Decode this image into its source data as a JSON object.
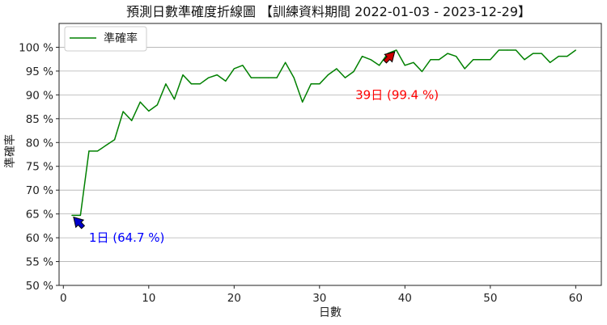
{
  "chart_data": {
    "type": "line",
    "title": "預測日數準確度折線圖 【訓練資料期間 2022-01-03 - 2023-12-29】",
    "xlabel": "日數",
    "ylabel": "準確率",
    "xlim": [
      -0.5,
      63
    ],
    "ylim": [
      50,
      105
    ],
    "x_ticks": [
      0,
      10,
      20,
      30,
      40,
      50,
      60
    ],
    "y_ticks": [
      {
        "value": 50,
        "label": "50 %"
      },
      {
        "value": 55,
        "label": "55 %"
      },
      {
        "value": 60,
        "label": "60 %"
      },
      {
        "value": 65,
        "label": "65 %"
      },
      {
        "value": 70,
        "label": "70 %"
      },
      {
        "value": 75,
        "label": "75 %"
      },
      {
        "value": 80,
        "label": "80 %"
      },
      {
        "value": 85,
        "label": "85 %"
      },
      {
        "value": 90,
        "label": "90 %"
      },
      {
        "value": 95,
        "label": "95 %"
      },
      {
        "value": 100,
        "label": "100 %"
      }
    ],
    "grid": "horizontal",
    "legend_position": "top-left",
    "series": [
      {
        "name": "準確率",
        "color": "#008000",
        "x": [
          1,
          2,
          3,
          4,
          5,
          6,
          7,
          8,
          9,
          10,
          11,
          12,
          13,
          14,
          15,
          16,
          17,
          18,
          19,
          20,
          21,
          22,
          23,
          24,
          25,
          26,
          27,
          28,
          29,
          30,
          31,
          32,
          33,
          34,
          35,
          36,
          37,
          38,
          39,
          40,
          41,
          42,
          43,
          44,
          45,
          46,
          47,
          48,
          49,
          50,
          51,
          52,
          53,
          54,
          55,
          56,
          57,
          58,
          59,
          60
        ],
        "y": [
          64.7,
          64.7,
          78.2,
          78.2,
          79.4,
          80.6,
          86.5,
          84.6,
          88.5,
          86.6,
          87.9,
          92.3,
          89.1,
          94.2,
          92.3,
          92.3,
          93.6,
          94.2,
          92.9,
          95.5,
          96.2,
          93.6,
          93.6,
          93.6,
          93.6,
          96.8,
          93.6,
          88.5,
          92.3,
          92.3,
          94.2,
          95.5,
          93.6,
          94.9,
          98.1,
          97.4,
          96.2,
          98.7,
          99.4,
          96.2,
          96.8,
          94.9,
          97.4,
          97.4,
          98.7,
          98.1,
          95.5,
          97.4,
          97.4,
          97.4,
          99.4,
          99.4,
          99.4,
          97.4,
          98.7,
          98.7,
          96.8,
          98.1,
          98.1,
          99.4
        ]
      }
    ],
    "annotations": [
      {
        "text": "1日 (64.7 %)",
        "x": 1,
        "y": 64.7,
        "text_x": 3,
        "text_y": 59.2,
        "color": "#0000ff",
        "arrow_color": "#0000cc"
      },
      {
        "text": "39日 (99.4 %)",
        "x": 39,
        "y": 99.4,
        "text_x": 34.2,
        "text_y": 89.1,
        "color": "#ff0000",
        "arrow_color": "#cc0000"
      }
    ]
  }
}
